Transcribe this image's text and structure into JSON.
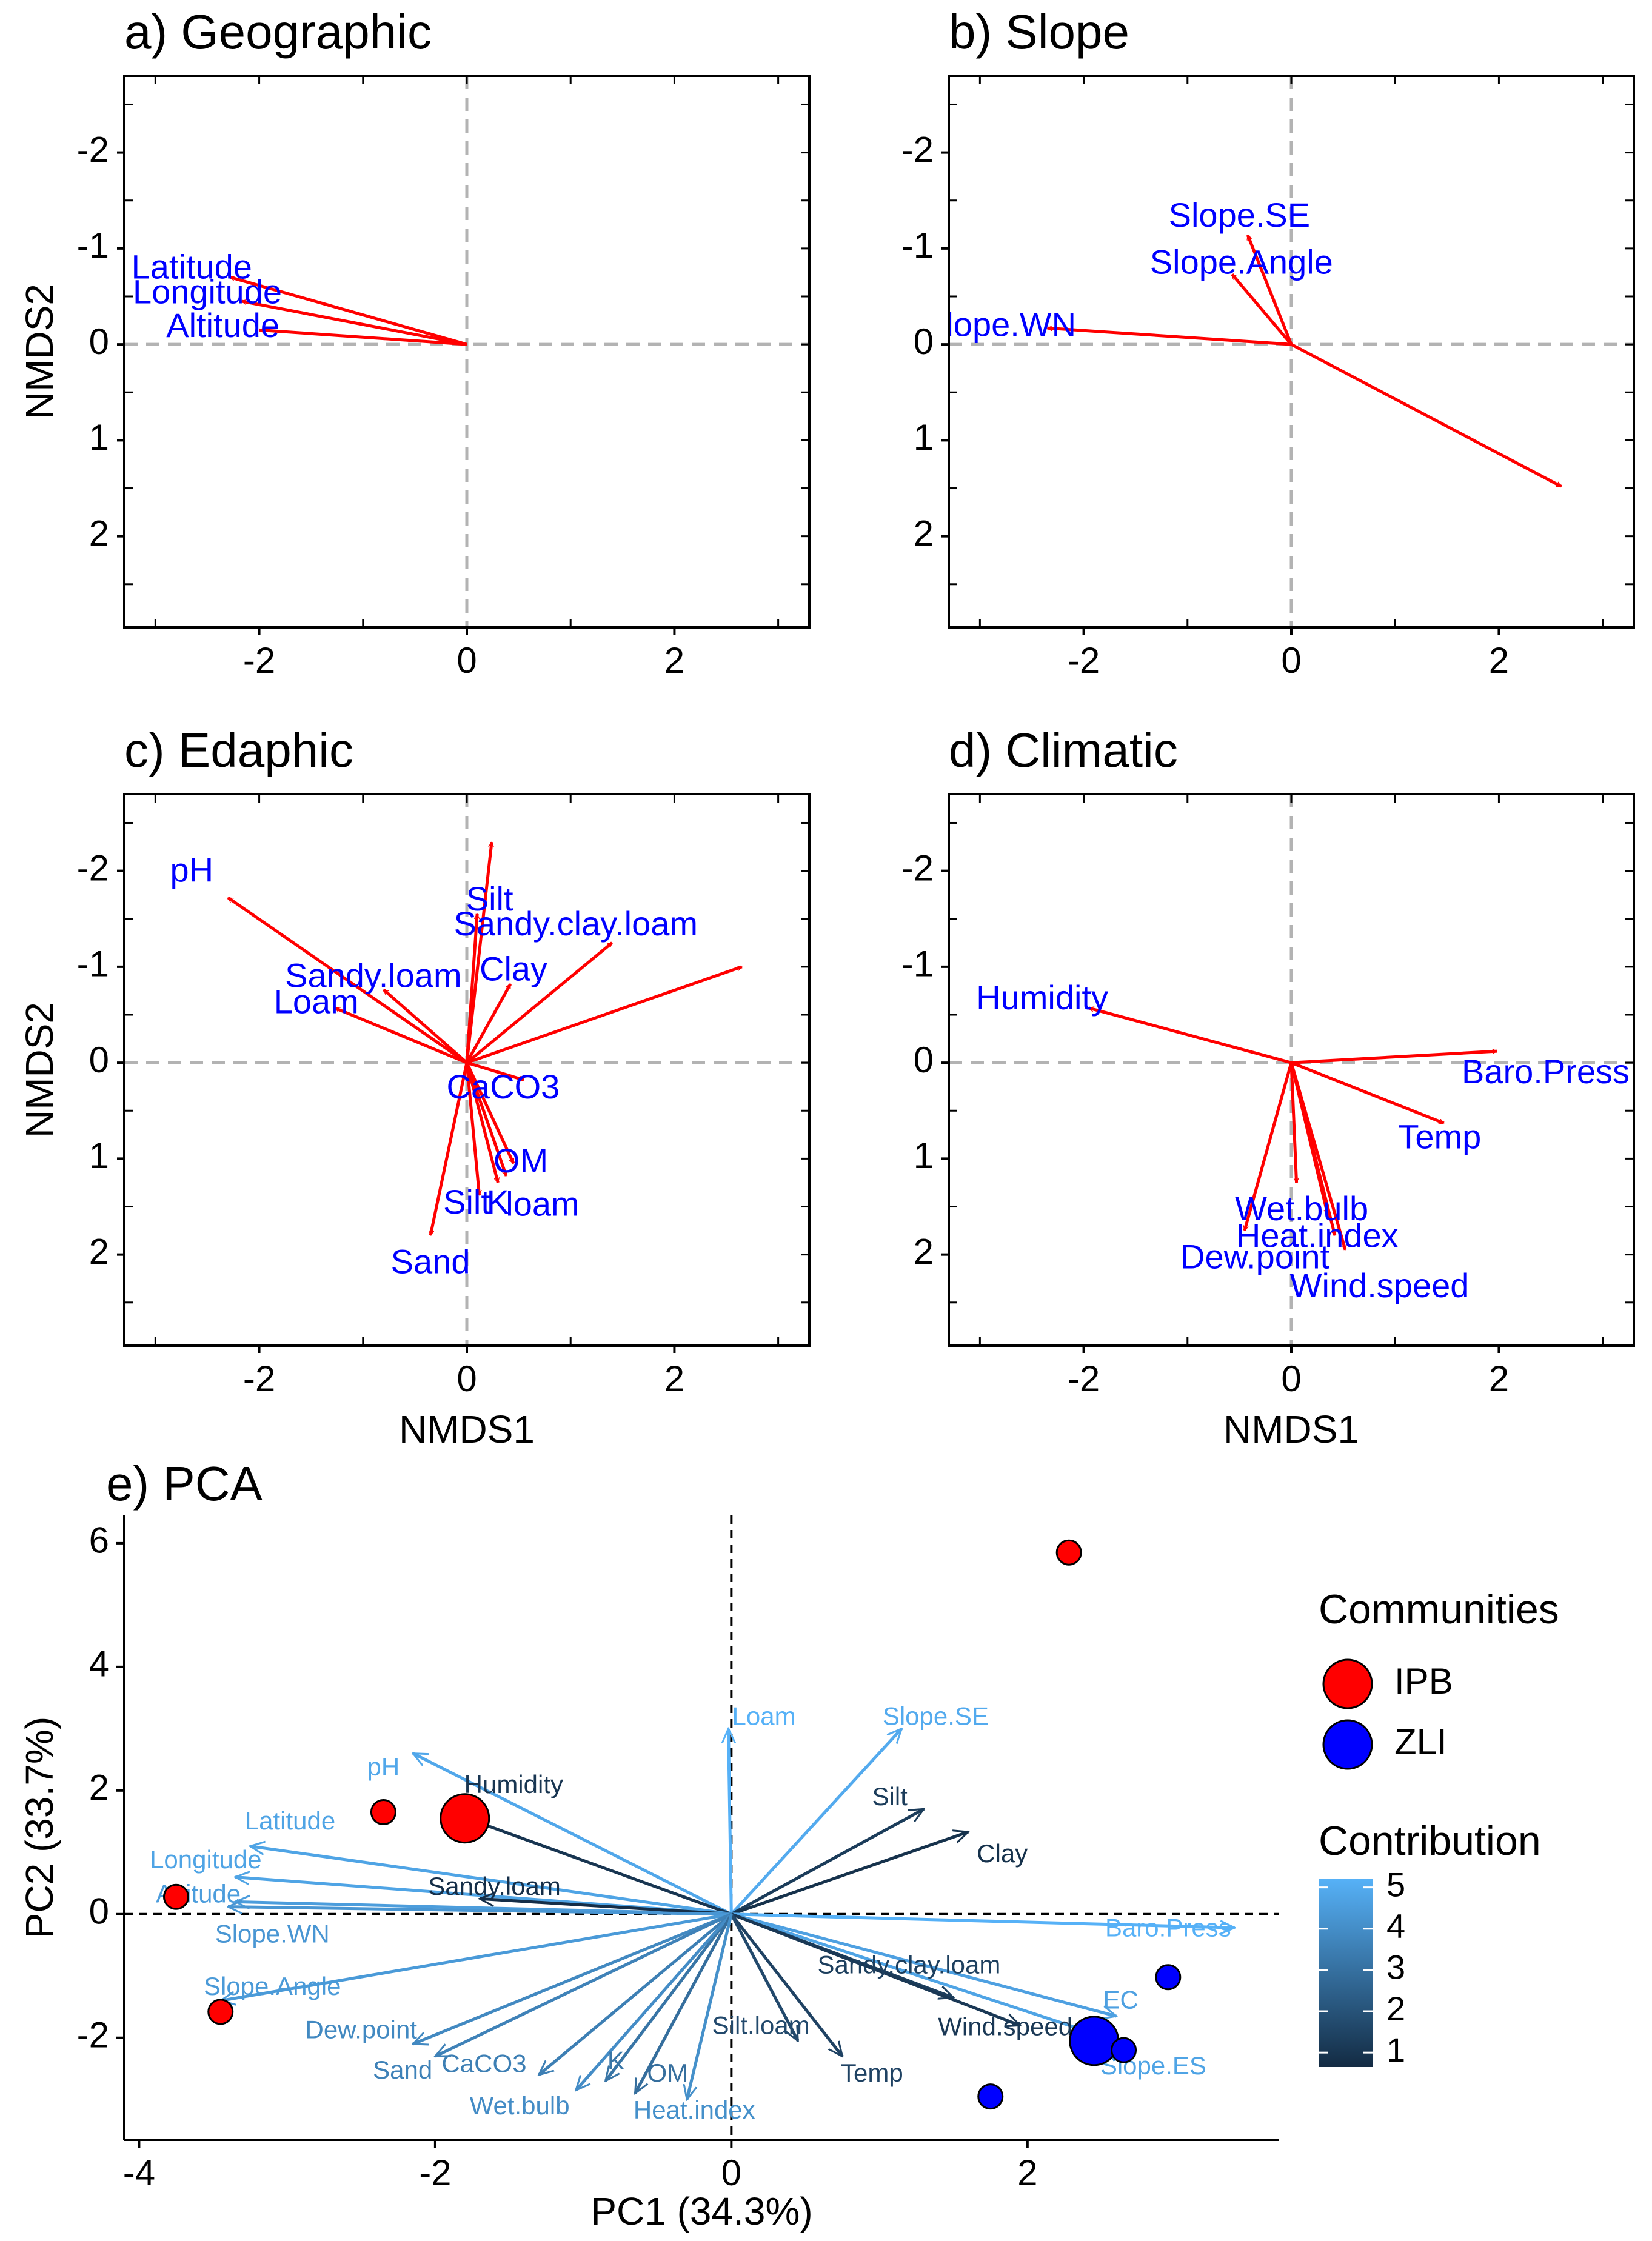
{
  "chart_data": [
    {
      "type": "biplot",
      "panel": "a",
      "title": "a) Geographic",
      "xlabel": "",
      "ylabel": "NMDS2",
      "xlim": [
        -3.3,
        3.3
      ],
      "ylim": [
        -2.8,
        2.95
      ],
      "y_inverted": true,
      "xticks": [
        -2,
        0,
        2
      ],
      "yticks": [
        -2,
        -1,
        0,
        1,
        2
      ],
      "vectors": [
        {
          "label": "Latitude",
          "x": -2.28,
          "y": -0.7,
          "lx": -2.65,
          "ly": -0.78
        },
        {
          "label": "Longitude",
          "x": -2.17,
          "y": -0.45,
          "lx": -2.5,
          "ly": -0.52
        },
        {
          "label": "Altitude",
          "x": -2.0,
          "y": -0.15,
          "lx": -2.35,
          "ly": -0.17
        }
      ]
    },
    {
      "type": "biplot",
      "panel": "b",
      "title": "b) Slope",
      "xlabel": "",
      "ylabel": "",
      "xlim": [
        -3.3,
        3.3
      ],
      "ylim": [
        -2.8,
        2.95
      ],
      "y_inverted": true,
      "xticks": [
        -2,
        0,
        2
      ],
      "yticks": [
        -2,
        -1,
        0,
        1,
        2
      ],
      "vectors": [
        {
          "label": "Slope.SE",
          "x": -0.42,
          "y": -1.14,
          "lx": -0.5,
          "ly": -1.32
        },
        {
          "label": "Slope.Angle",
          "x": -0.57,
          "y": -0.73,
          "lx": -0.48,
          "ly": -0.83
        },
        {
          "label": "lope.WN",
          "x": -2.35,
          "y": -0.17,
          "lx": -2.7,
          "ly": -0.18
        },
        {
          "label": "",
          "x": 2.6,
          "y": 1.48,
          "lx": 2.6,
          "ly": 1.48
        }
      ]
    },
    {
      "type": "biplot",
      "panel": "c",
      "title": "c) Edaphic",
      "xlabel": "NMDS1",
      "ylabel": "NMDS2",
      "xlim": [
        -3.3,
        3.3
      ],
      "ylim": [
        -2.8,
        2.95
      ],
      "y_inverted": true,
      "xticks": [
        -2,
        0,
        2
      ],
      "yticks": [
        -2,
        -1,
        0,
        1,
        2
      ],
      "vectors": [
        {
          "label": "pH",
          "x": -2.3,
          "y": -1.72,
          "lx": -2.65,
          "ly": -1.98
        },
        {
          "label": "Silt",
          "x": 0.24,
          "y": -2.3,
          "lx": 0.22,
          "ly": -1.68
        },
        {
          "label": "Sandy.clay.loam",
          "x": 1.4,
          "y": -1.25,
          "lx": 1.05,
          "ly": -1.42
        },
        {
          "label": "Clay",
          "x": 0.42,
          "y": -0.82,
          "lx": 0.45,
          "ly": -0.95
        },
        {
          "label": "Sandy.loam",
          "x": -0.8,
          "y": -0.76,
          "lx": -0.9,
          "ly": -0.88
        },
        {
          "label": "Loam",
          "x": -1.27,
          "y": -0.57,
          "lx": -1.45,
          "ly": -0.61
        },
        {
          "label": "",
          "x": 2.65,
          "y": -1.0,
          "lx": 2.65,
          "ly": -1.0
        },
        {
          "label": "",
          "x": 0.1,
          "y": -1.55,
          "lx": 0.1,
          "ly": -1.55
        },
        {
          "label": "CaCO3",
          "x": 0.55,
          "y": 0.18,
          "lx": 0.35,
          "ly": 0.28
        },
        {
          "label": "OM",
          "x": 0.45,
          "y": 1.05,
          "lx": 0.52,
          "ly": 1.05
        },
        {
          "label": "K",
          "x": 0.3,
          "y": 1.25,
          "lx": 0.3,
          "ly": 1.48
        },
        {
          "label": "loam",
          "x": 0.38,
          "y": 1.18,
          "lx": 0.73,
          "ly": 1.5
        },
        {
          "label": "Silt",
          "x": 0.12,
          "y": 1.38,
          "lx": 0.0,
          "ly": 1.48
        },
        {
          "label": "Sand",
          "x": -0.35,
          "y": 1.8,
          "lx": -0.35,
          "ly": 2.1
        }
      ]
    },
    {
      "type": "biplot",
      "panel": "d",
      "title": "d) Climatic",
      "xlabel": "NMDS1",
      "ylabel": "",
      "xlim": [
        -3.3,
        3.3
      ],
      "ylim": [
        -2.8,
        2.95
      ],
      "y_inverted": true,
      "xticks": [
        -2,
        0,
        2
      ],
      "yticks": [
        -2,
        -1,
        0,
        1,
        2
      ],
      "vectors": [
        {
          "label": "Humidity",
          "x": -1.95,
          "y": -0.57,
          "lx": -2.4,
          "ly": -0.65
        },
        {
          "label": "Baro.Press",
          "x": 1.98,
          "y": -0.12,
          "lx": 2.45,
          "ly": 0.12
        },
        {
          "label": "Temp",
          "x": 1.47,
          "y": 0.63,
          "lx": 1.43,
          "ly": 0.8
        },
        {
          "label": "Wet.bulb",
          "x": 0.35,
          "y": 1.58,
          "lx": 0.1,
          "ly": 1.55
        },
        {
          "label": "Heat.index",
          "x": 0.52,
          "y": 1.95,
          "lx": 0.25,
          "ly": 1.83
        },
        {
          "label": "Dew.point",
          "x": -0.45,
          "y": 1.75,
          "lx": -0.35,
          "ly": 2.05
        },
        {
          "label": "Wind.speed",
          "x": 0.05,
          "y": 1.25,
          "lx": 0.85,
          "ly": 2.35
        },
        {
          "label": "",
          "x": 0.42,
          "y": 1.8,
          "lx": 0.42,
          "ly": 1.8
        }
      ]
    },
    {
      "type": "pca_biplot",
      "panel": "e",
      "title": "e) PCA",
      "xlabel": "PC1 (34.3%)",
      "ylabel": "PC2 (33.7%)",
      "xlim": [
        -4.1,
        3.7
      ],
      "ylim": [
        -3.65,
        6.45
      ],
      "xticks": [
        -4,
        -2,
        0,
        2
      ],
      "yticks": [
        -2,
        0,
        2,
        4,
        6
      ],
      "points": [
        {
          "community": "IPB",
          "x": 2.28,
          "y": 5.85,
          "size": 1
        },
        {
          "community": "IPB",
          "x": -2.35,
          "y": 1.65,
          "size": 1
        },
        {
          "community": "IPB",
          "x": -1.8,
          "y": 1.55,
          "size": 3
        },
        {
          "community": "IPB",
          "x": -3.75,
          "y": 0.28,
          "size": 1
        },
        {
          "community": "IPB",
          "x": -3.45,
          "y": -1.58,
          "size": 1
        },
        {
          "community": "ZLI",
          "x": 2.95,
          "y": -1.02,
          "size": 1
        },
        {
          "community": "ZLI",
          "x": 2.45,
          "y": -2.05,
          "size": 3
        },
        {
          "community": "ZLI",
          "x": 2.65,
          "y": -2.2,
          "size": 1
        },
        {
          "community": "ZLI",
          "x": 1.75,
          "y": -2.95,
          "size": 1
        }
      ],
      "vectors": [
        {
          "label": "Loam",
          "x": -0.02,
          "y": 3.0,
          "lx": 0.22,
          "ly": 3.17,
          "contrib": 5.0
        },
        {
          "label": "Slope.SE",
          "x": 1.15,
          "y": 3.0,
          "lx": 1.38,
          "ly": 3.17,
          "contrib": 4.8
        },
        {
          "label": "Silt",
          "x": 1.3,
          "y": 1.7,
          "lx": 1.07,
          "ly": 1.87,
          "contrib": 1.5
        },
        {
          "label": "Clay",
          "x": 1.6,
          "y": 1.33,
          "lx": 1.83,
          "ly": 0.95,
          "contrib": 1.2
        },
        {
          "label": "pH",
          "x": -2.15,
          "y": 2.6,
          "lx": -2.35,
          "ly": 2.35,
          "contrib": 4.7
        },
        {
          "label": "Humidity",
          "x": -1.9,
          "y": 1.65,
          "lx": -1.47,
          "ly": 2.07,
          "contrib": 1.3
        },
        {
          "label": "Latitude",
          "x": -3.25,
          "y": 1.1,
          "lx": -2.98,
          "ly": 1.48,
          "contrib": 4.6
        },
        {
          "label": "Longitude",
          "x": -3.35,
          "y": 0.6,
          "lx": -3.55,
          "ly": 0.85,
          "contrib": 4.6
        },
        {
          "label": "Altitude",
          "x": -3.35,
          "y": 0.2,
          "lx": -3.6,
          "ly": 0.3,
          "contrib": 4.4
        },
        {
          "label": "Sandy.loam",
          "x": -1.7,
          "y": 0.25,
          "lx": -1.6,
          "ly": 0.42,
          "contrib": 1.1
        },
        {
          "label": "Slope.WN",
          "x": -3.4,
          "y": 0.12,
          "lx": -3.1,
          "ly": -0.35,
          "contrib": 4.2
        },
        {
          "label": "Baro.Press",
          "x": 3.4,
          "y": -0.22,
          "lx": 2.95,
          "ly": -0.25,
          "contrib": 5.0
        },
        {
          "label": "EC",
          "x": 2.6,
          "y": -1.65,
          "lx": 2.63,
          "ly": -1.42,
          "contrib": 4.5
        },
        {
          "label": "Slope.ES",
          "x": 2.6,
          "y": -2.05,
          "lx": 2.85,
          "ly": -2.48,
          "contrib": 4.6
        },
        {
          "label": "Sandy.clay.loam",
          "x": 1.5,
          "y": -1.35,
          "lx": 1.2,
          "ly": -0.85,
          "contrib": 1.6
        },
        {
          "label": "Wind.speed",
          "x": 1.95,
          "y": -1.8,
          "lx": 1.85,
          "ly": -1.85,
          "contrib": 1.4
        },
        {
          "label": "Temp",
          "x": 0.75,
          "y": -2.3,
          "lx": 0.95,
          "ly": -2.6,
          "contrib": 1.7
        },
        {
          "label": "Silt.loam",
          "x": 0.45,
          "y": -2.05,
          "lx": 0.2,
          "ly": -1.83,
          "contrib": 1.9
        },
        {
          "label": "Slope.Angle",
          "x": -3.45,
          "y": -1.4,
          "lx": -3.1,
          "ly": -1.2,
          "contrib": 4.3
        },
        {
          "label": "Dew.point",
          "x": -2.15,
          "y": -2.1,
          "lx": -2.5,
          "ly": -1.9,
          "contrib": 3.8
        },
        {
          "label": "Sand",
          "x": -2.0,
          "y": -2.3,
          "lx": -2.22,
          "ly": -2.55,
          "contrib": 3.6
        },
        {
          "label": "CaCO3",
          "x": -1.3,
          "y": -2.6,
          "lx": -1.67,
          "ly": -2.45,
          "contrib": 3.5
        },
        {
          "label": "K",
          "x": -0.85,
          "y": -2.7,
          "lx": -0.78,
          "ly": -2.4,
          "contrib": 3.2
        },
        {
          "label": "Wet.bulb",
          "x": -1.05,
          "y": -2.85,
          "lx": -1.43,
          "ly": -3.13,
          "contrib": 3.9
        },
        {
          "label": "OM",
          "x": -0.65,
          "y": -2.9,
          "lx": -0.43,
          "ly": -2.6,
          "contrib": 3.0
        },
        {
          "label": "Heat.index",
          "x": -0.3,
          "y": -3.0,
          "lx": -0.25,
          "ly": -3.2,
          "contrib": 4.0
        }
      ],
      "legend": {
        "communities_title": "Communities",
        "communities": [
          {
            "name": "IPB",
            "color": "#ff0000"
          },
          {
            "name": "ZLI",
            "color": "#0000ff"
          }
        ],
        "contribution_title": "Contribution",
        "contribution_ticks": [
          1,
          2,
          3,
          4,
          5
        ],
        "contribution_colors": [
          "#132b43",
          "#56b1f7"
        ]
      }
    }
  ],
  "colors": {
    "arrow": "#ff0000",
    "vector_label": "#0000ff",
    "ref_line": "#b3b3b3",
    "ipb": "#ff0000",
    "zli": "#0000ff"
  }
}
